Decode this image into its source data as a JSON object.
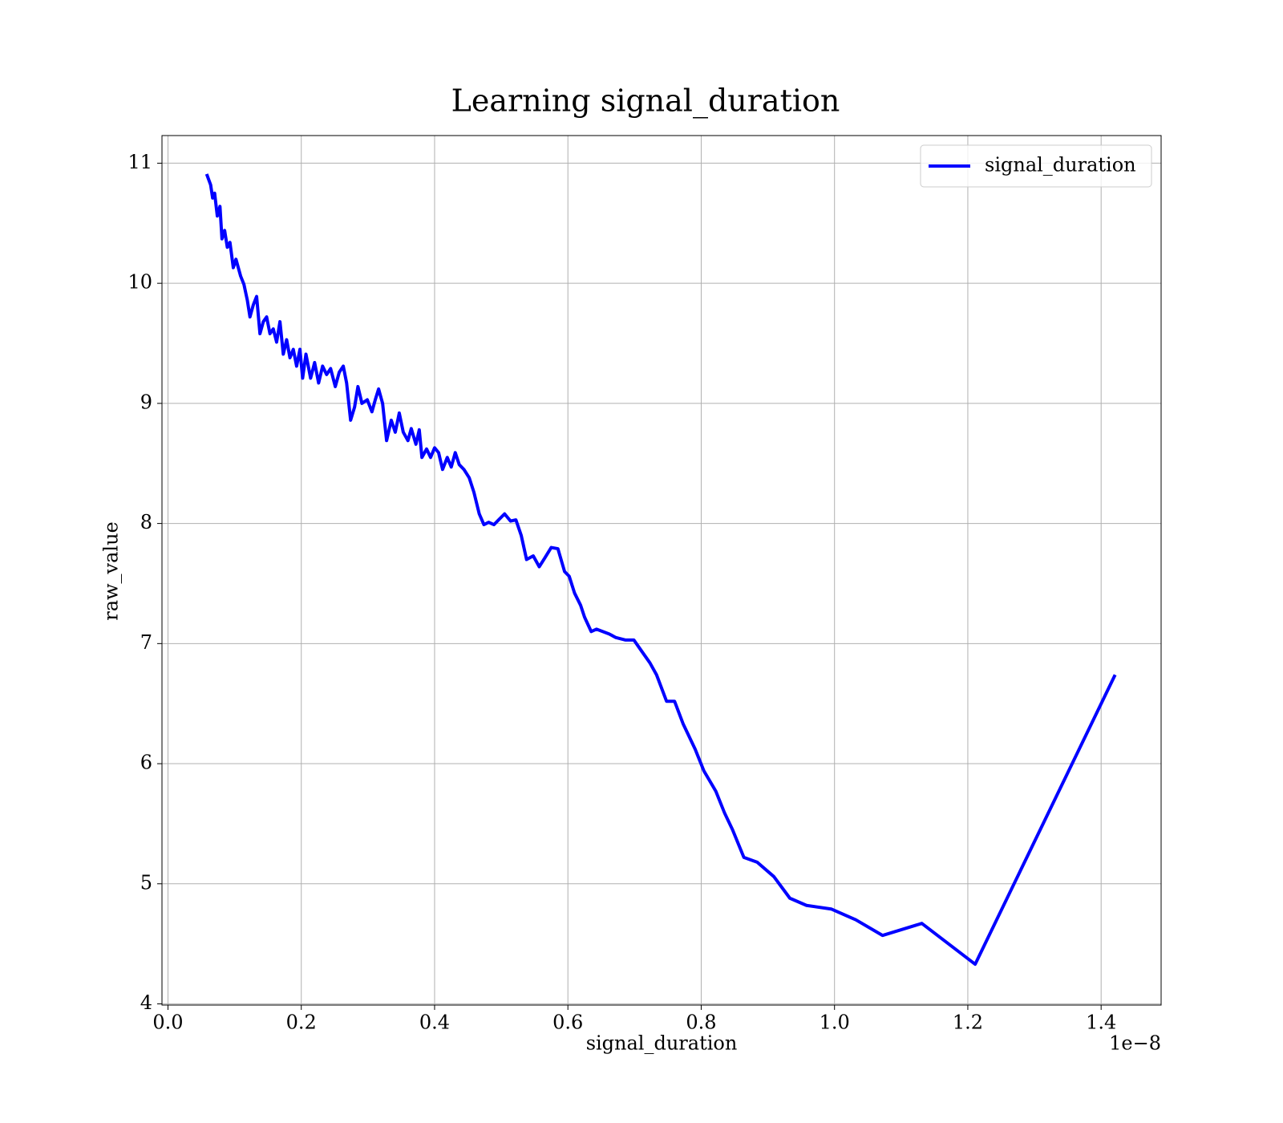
{
  "chart_data": {
    "type": "line",
    "title": "Learning signal_duration",
    "xlabel": "signal_duration",
    "ylabel": "raw_value",
    "x_offset_label": "1e−8",
    "x": [
      0.058,
      0.064,
      0.067,
      0.07,
      0.074,
      0.078,
      0.081,
      0.085,
      0.089,
      0.093,
      0.098,
      0.102,
      0.109,
      0.114,
      0.119,
      0.123,
      0.128,
      0.133,
      0.138,
      0.143,
      0.148,
      0.153,
      0.158,
      0.163,
      0.168,
      0.173,
      0.178,
      0.183,
      0.188,
      0.193,
      0.198,
      0.202,
      0.207,
      0.214,
      0.22,
      0.226,
      0.232,
      0.238,
      0.244,
      0.251,
      0.257,
      0.263,
      0.268,
      0.274,
      0.28,
      0.285,
      0.291,
      0.299,
      0.306,
      0.311,
      0.316,
      0.322,
      0.328,
      0.335,
      0.341,
      0.347,
      0.353,
      0.36,
      0.365,
      0.372,
      0.377,
      0.381,
      0.388,
      0.394,
      0.4,
      0.406,
      0.412,
      0.419,
      0.425,
      0.431,
      0.437,
      0.444,
      0.452,
      0.459,
      0.467,
      0.474,
      0.481,
      0.489,
      0.496,
      0.505,
      0.514,
      0.522,
      0.53,
      0.538,
      0.548,
      0.557,
      0.565,
      0.575,
      0.585,
      0.595,
      0.602,
      0.61,
      0.619,
      0.625,
      0.635,
      0.643,
      0.662,
      0.672,
      0.686,
      0.699,
      0.709,
      0.723,
      0.733,
      0.748,
      0.76,
      0.773,
      0.791,
      0.804,
      0.822,
      0.835,
      0.847,
      0.864,
      0.884,
      0.909,
      0.933,
      0.958,
      0.995,
      1.032,
      1.072,
      1.131,
      1.211,
      1.421
    ],
    "series": [
      {
        "name": "signal_duration",
        "color": "#0000ff",
        "values": [
          10.91,
          10.82,
          10.71,
          10.75,
          10.56,
          10.64,
          10.37,
          10.44,
          10.3,
          10.34,
          10.13,
          10.2,
          10.06,
          9.99,
          9.86,
          9.72,
          9.82,
          9.89,
          9.58,
          9.68,
          9.72,
          9.58,
          9.62,
          9.51,
          9.68,
          9.41,
          9.53,
          9.38,
          9.45,
          9.31,
          9.45,
          9.21,
          9.41,
          9.21,
          9.34,
          9.17,
          9.31,
          9.24,
          9.29,
          9.14,
          9.26,
          9.31,
          9.17,
          8.86,
          8.97,
          9.14,
          9.0,
          9.03,
          8.93,
          9.03,
          9.12,
          9.0,
          8.69,
          8.86,
          8.76,
          8.92,
          8.76,
          8.69,
          8.79,
          8.66,
          8.78,
          8.55,
          8.62,
          8.55,
          8.63,
          8.59,
          8.45,
          8.55,
          8.47,
          8.59,
          8.49,
          8.45,
          8.38,
          8.26,
          8.08,
          7.99,
          8.01,
          7.99,
          8.03,
          8.08,
          8.02,
          8.03,
          7.9,
          7.7,
          7.73,
          7.64,
          7.71,
          7.8,
          7.79,
          7.6,
          7.56,
          7.42,
          7.32,
          7.22,
          7.1,
          7.12,
          7.08,
          7.05,
          7.03,
          7.03,
          6.95,
          6.84,
          6.74,
          6.52,
          6.52,
          6.33,
          6.12,
          5.94,
          5.77,
          5.59,
          5.45,
          5.22,
          5.18,
          5.06,
          4.88,
          4.82,
          4.79,
          4.7,
          4.57,
          4.67,
          4.33,
          6.74
        ]
      }
    ],
    "xlim": [
      -0.009,
      1.49
    ],
    "ylim": [
      3.99,
      11.23
    ],
    "xticks": [
      {
        "value": 0,
        "label": "0.0"
      },
      {
        "value": 0.2,
        "label": "0.2"
      },
      {
        "value": 0.4,
        "label": "0.4"
      },
      {
        "value": 0.6,
        "label": "0.6"
      },
      {
        "value": 0.8,
        "label": "0.8"
      },
      {
        "value": 1,
        "label": "1.0"
      },
      {
        "value": 1.2,
        "label": "1.2"
      },
      {
        "value": 1.4,
        "label": "1.4"
      }
    ],
    "yticks": [
      4,
      5,
      6,
      7,
      8,
      9,
      10,
      11
    ],
    "grid": true,
    "legend": "upper right"
  }
}
